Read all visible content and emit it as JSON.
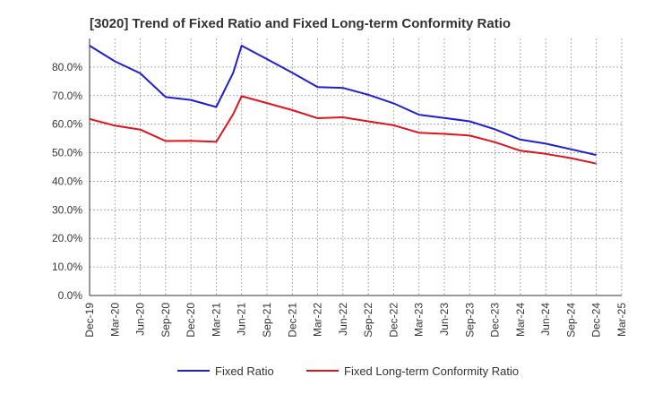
{
  "chart_data": {
    "type": "line",
    "title": "[3020]  Trend of Fixed Ratio and Fixed Long-term Conformity Ratio",
    "xlabel": "",
    "ylabel": "",
    "categories": [
      "Dec-19",
      "Mar-20",
      "Jun-20",
      "Sep-20",
      "Dec-20",
      "Mar-21",
      "Jun-21",
      "Sep-21",
      "Dec-21",
      "Mar-22",
      "Jun-22",
      "Sep-22",
      "Dec-22",
      "Mar-23",
      "Jun-23",
      "Sep-23",
      "Dec-23",
      "Mar-24",
      "Jun-24",
      "Sep-24",
      "Dec-24",
      "Mar-25"
    ],
    "yticks": [
      "0.0%",
      "10.0%",
      "20.0%",
      "30.0%",
      "40.0%",
      "50.0%",
      "60.0%",
      "70.0%",
      "80.0%"
    ],
    "ylim": [
      0,
      90
    ],
    "grid": true,
    "legend": "bottom",
    "series": [
      {
        "name": "Fixed Ratio",
        "color": "#1f1fcf",
        "x": [
          "Dec-19",
          "Mar-20",
          "Jun-20",
          "Sep-20",
          "Dec-20",
          "Mar-21",
          "May-21",
          "Jun-21",
          "Sep-21",
          "Dec-21",
          "Mar-22",
          "Jun-22",
          "Sep-22",
          "Dec-22",
          "Mar-23",
          "Jun-23",
          "Sep-23",
          "Dec-23",
          "Mar-24",
          "Jun-24",
          "Sep-24",
          "Dec-24"
        ],
        "values": [
          87.5,
          82.0,
          77.8,
          69.5,
          68.5,
          66.0,
          78.0,
          87.5,
          82.8,
          78.0,
          73.0,
          72.7,
          70.3,
          67.3,
          63.3,
          62.2,
          61.0,
          58.2,
          54.6,
          53.2,
          51.2,
          49.2
        ]
      },
      {
        "name": "Fixed Long-term Conformity Ratio",
        "color": "#e0141e",
        "x": [
          "Dec-19",
          "Mar-20",
          "Jun-20",
          "Sep-20",
          "Dec-20",
          "Mar-21",
          "May-21",
          "Jun-21",
          "Sep-21",
          "Dec-21",
          "Mar-22",
          "Jun-22",
          "Sep-22",
          "Dec-22",
          "Mar-23",
          "Jun-23",
          "Sep-23",
          "Dec-23",
          "Mar-24",
          "Jun-24",
          "Sep-24",
          "Dec-24"
        ],
        "values": [
          61.8,
          59.5,
          58.1,
          54.1,
          54.2,
          53.8,
          63.5,
          69.8,
          67.4,
          64.9,
          62.1,
          62.4,
          61.0,
          59.6,
          57.0,
          56.6,
          56.0,
          53.7,
          50.7,
          49.6,
          48.1,
          46.2
        ]
      }
    ]
  }
}
